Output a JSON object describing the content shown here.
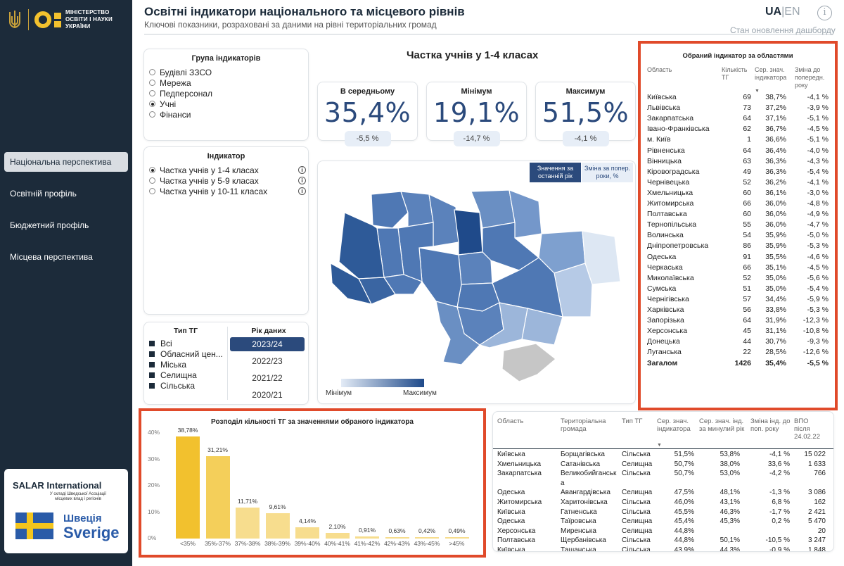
{
  "ministry": {
    "line1": "МІНІСТЕРСТВО",
    "line2": "ОСВІТИ І НАУКИ",
    "line3": "УКРАЇНИ"
  },
  "nav": [
    {
      "label": "Національна перспектива",
      "active": true
    },
    {
      "label": "Освітній профіль",
      "active": false
    },
    {
      "label": "Бюджетний профіль",
      "active": false
    },
    {
      "label": "Місцева перспектива",
      "active": false
    }
  ],
  "partners": {
    "salar": "SALAR International",
    "salar_sub": "У складі Шведської Асоціації місцевих влад і регіонів",
    "sw1": "Швеція",
    "sw2": "Sverige"
  },
  "header": {
    "title": "Освітні індикатори національного та місцевого рівнів",
    "subtitle": "Ключові показники, розраховані за даними на рівні територіальних громад",
    "lang_ua": "UA",
    "lang_sep": "|",
    "lang_en": "EN",
    "info": "i",
    "status": "Стан оновлення дашборду"
  },
  "group": {
    "title": "Група індикаторів",
    "items": [
      {
        "label": "Будівлі ЗЗСО",
        "on": false
      },
      {
        "label": "Мережа",
        "on": false
      },
      {
        "label": "Педперсонал",
        "on": false
      },
      {
        "label": "Учні",
        "on": true
      },
      {
        "label": "Фінанси",
        "on": false
      }
    ]
  },
  "indicator": {
    "title": "Індикатор",
    "items": [
      {
        "label": "Частка учнів у 1-4 класах",
        "on": true
      },
      {
        "label": "Частка учнів у 5-9 класах",
        "on": false
      },
      {
        "label": "Частка учнів у 10-11 класах",
        "on": false
      }
    ]
  },
  "filters": {
    "tg_title": "Тип ТГ",
    "tg": [
      "Всі",
      "Обласний цен...",
      "Міська",
      "Селищна",
      "Сільська"
    ],
    "year_title": "Рік даних",
    "years": [
      "2023/24",
      "2022/23",
      "2021/22",
      "2020/21"
    ],
    "selected_year": "2023/24"
  },
  "main_title": "Частка учнів у 1-4 класах",
  "kpis": [
    {
      "title": "В середньому",
      "value": "35,4%",
      "change": "-5,5 %"
    },
    {
      "title": "Мінімум",
      "value": "19,1%",
      "change": "-14,7 %"
    },
    {
      "title": "Максимум",
      "value": "51,5%",
      "change": "-4,1 %"
    }
  ],
  "map": {
    "btn_value": "Значення за останній рік",
    "btn_change": "Зміна за попер. роки, %",
    "legend_min": "Мінімум",
    "legend_max": "Максимум",
    "colors": {
      "dark": "#1f4a8a",
      "mid": "#4f78b4",
      "light": "#9cb6da",
      "pale": "#dde7f3",
      "crimea": "#c6c6c6"
    }
  },
  "region_table": {
    "title": "Обраний індикатор за областями",
    "headers": [
      "Область",
      "Кількість ТГ",
      "Сер. знач. індикатора",
      "Зміна до попередн. року"
    ],
    "sort_arrow": "▼",
    "rows": [
      [
        "Київська",
        "69",
        "38,7%",
        "-4,1 %"
      ],
      [
        "Львівська",
        "73",
        "37,2%",
        "-3,9 %"
      ],
      [
        "Закарпатська",
        "64",
        "37,1%",
        "-5,1 %"
      ],
      [
        "Івано-Франківська",
        "62",
        "36,7%",
        "-4,5 %"
      ],
      [
        "м. Київ",
        "1",
        "36,6%",
        "-5,1 %"
      ],
      [
        "Рівненська",
        "64",
        "36,4%",
        "-4,0 %"
      ],
      [
        "Вінницька",
        "63",
        "36,3%",
        "-4,3 %"
      ],
      [
        "Кіровоградська",
        "49",
        "36,3%",
        "-5,4 %"
      ],
      [
        "Чернівецька",
        "52",
        "36,2%",
        "-4,1 %"
      ],
      [
        "Хмельницька",
        "60",
        "36,1%",
        "-3,0 %"
      ],
      [
        "Житомирська",
        "66",
        "36,0%",
        "-4,8 %"
      ],
      [
        "Полтавська",
        "60",
        "36,0%",
        "-4,9 %"
      ],
      [
        "Тернопільська",
        "55",
        "36,0%",
        "-4,7 %"
      ],
      [
        "Волинська",
        "54",
        "35,9%",
        "-5,0 %"
      ],
      [
        "Дніпропетровська",
        "86",
        "35,9%",
        "-5,3 %"
      ],
      [
        "Одеська",
        "91",
        "35,5%",
        "-4,6 %"
      ],
      [
        "Черкаська",
        "66",
        "35,1%",
        "-4,5 %"
      ],
      [
        "Миколаївська",
        "52",
        "35,0%",
        "-5,6 %"
      ],
      [
        "Сумська",
        "51",
        "35,0%",
        "-5,4 %"
      ],
      [
        "Чернігівська",
        "57",
        "34,4%",
        "-5,9 %"
      ],
      [
        "Харківська",
        "56",
        "33,8%",
        "-5,3 %"
      ],
      [
        "Запорізька",
        "64",
        "31,9%",
        "-12,3 %"
      ],
      [
        "Херсонська",
        "45",
        "31,1%",
        "-10,8 %"
      ],
      [
        "Донецька",
        "44",
        "30,7%",
        "-9,3 %"
      ],
      [
        "Луганська",
        "22",
        "28,5%",
        "-12,6 %"
      ]
    ],
    "total": [
      "Загалом",
      "1426",
      "35,4%",
      "-5,5 %"
    ]
  },
  "distribution": {
    "title": "Розподіл кількості ТГ за значеннями обраного індикатора",
    "chart_data": {
      "type": "bar",
      "categories": [
        "<35%",
        "35%-37%",
        "37%-38%",
        "38%-39%",
        "39%-40%",
        "40%-41%",
        "41%-42%",
        "42%-43%",
        "43%-45%",
        ">45%"
      ],
      "values": [
        38.78,
        31.21,
        11.71,
        9.61,
        4.14,
        2.1,
        0.91,
        0.63,
        0.42,
        0.49
      ],
      "labels": [
        "38,78%",
        "31,21%",
        "11,71%",
        "9,61%",
        "4,14%",
        "2,10%",
        "0,91%",
        "0,63%",
        "0,42%",
        "0,49%"
      ],
      "yticks": [
        "40%",
        "30%",
        "20%",
        "10%",
        "0%"
      ],
      "ylim": [
        0,
        40
      ],
      "color": "#f2cc4c"
    }
  },
  "bottom_table": {
    "headers": [
      "Область",
      "Територіальна громада",
      "Тип ТГ",
      "Сер. знач. індикатора",
      "Сер. знач. інд. за минулий рік",
      "Зміна інд. до поп. року",
      "ВПО після 24.02.22"
    ],
    "sort_arrow": "▼",
    "rows": [
      [
        "Київська",
        "Борщагівська",
        "Сільська",
        "51,5%",
        "53,8%",
        "-4,1 %",
        "15 022"
      ],
      [
        "Хмельницька",
        "Сатанівська",
        "Селищна",
        "50,7%",
        "38,0%",
        "33,6 %",
        "1 633"
      ],
      [
        "Закарпатська",
        "Великобийганськ",
        "Сільська",
        "50,7%",
        "53,0%",
        "-4,2 %",
        "766"
      ],
      [
        "",
        "а",
        "",
        "",
        "",
        "",
        ""
      ],
      [
        "Одеська",
        "Авангардівська",
        "Селищна",
        "47,5%",
        "48,1%",
        "-1,3 %",
        "3 086"
      ],
      [
        "Житомирська",
        "Харитонівська",
        "Сільська",
        "46,0%",
        "43,1%",
        "6,8 %",
        "162"
      ],
      [
        "Київська",
        "Гатненська",
        "Сільська",
        "45,5%",
        "46,3%",
        "-1,7 %",
        "2 421"
      ],
      [
        "Одеська",
        "Таїровська",
        "Селищна",
        "45,4%",
        "45,3%",
        "0,2 %",
        "5 470"
      ],
      [
        "Херсонська",
        "Миренська",
        "Селищна",
        "44,8%",
        "",
        "",
        "20"
      ],
      [
        "Полтавська",
        "Щербанівська",
        "Сільська",
        "44,8%",
        "50,1%",
        "-10,5 %",
        "3 247"
      ],
      [
        "Київська",
        "Ташанська",
        "Сільська",
        "43,9%",
        "44,3%",
        "-0,9 %",
        "1 848"
      ]
    ]
  }
}
